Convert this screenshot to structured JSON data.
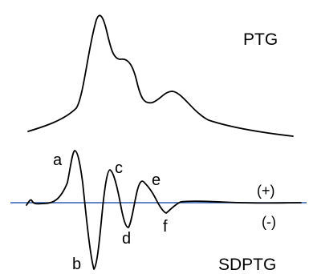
{
  "diagram": {
    "ptg_label": "PTG",
    "sdptg_label": "SDPTG",
    "points": {
      "a": "a",
      "b": "b",
      "c": "c",
      "d": "d",
      "e": "e",
      "f": "f"
    },
    "positive_sign": "(+)",
    "negative_sign": "(-)",
    "colors": {
      "curve": "#000000",
      "baseline": "#2f5fb3"
    }
  }
}
